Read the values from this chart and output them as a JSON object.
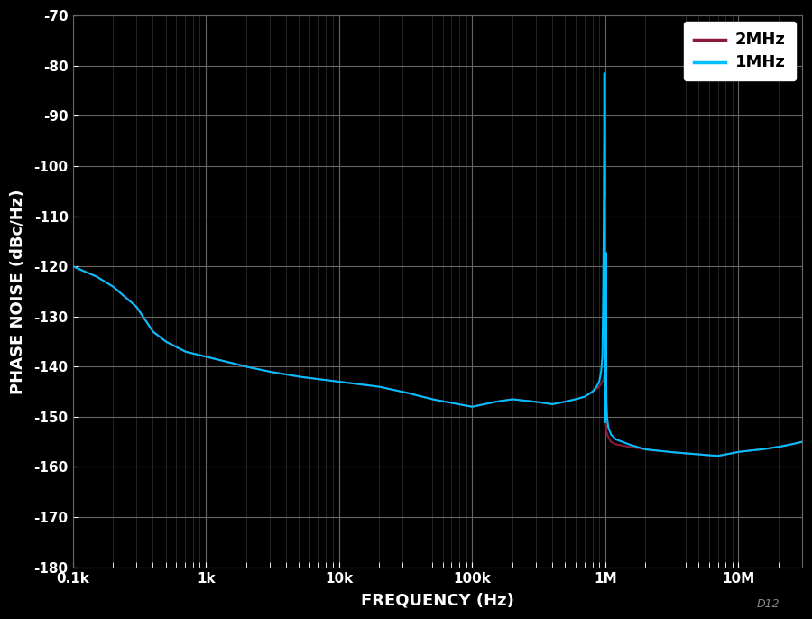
{
  "bg_color": "#000000",
  "grid_major_color": "#666666",
  "grid_minor_color": "#333333",
  "line_2MHz_color": "#8B1A3A",
  "line_1MHz_color": "#00BFFF",
  "xlabel": "FREQUENCY (Hz)",
  "ylabel": "PHASE NOISE (dBc/Hz)",
  "ylim": [
    -180,
    -70
  ],
  "yticks": [
    -180,
    -170,
    -160,
    -150,
    -140,
    -130,
    -120,
    -110,
    -100,
    -90,
    -80,
    -70
  ],
  "ytick_labels": [
    "-180",
    "-170",
    "-160",
    "-150",
    "-140",
    "-130",
    "-120",
    "-110",
    "-100",
    "-90",
    "-80",
    "-70"
  ],
  "xtick_freqs": [
    100,
    1000,
    10000,
    100000,
    1000000,
    10000000
  ],
  "xtick_labels": [
    "0.1k",
    "1k",
    "10k",
    "100k",
    "1M",
    "10M"
  ],
  "xmin": 100,
  "xmax": 30000000,
  "text_color": "#ffffff",
  "font_size_axis_label": 13,
  "font_size_tick": 11,
  "font_size_legend": 13,
  "watermark": "D12",
  "pts_2MHz": [
    [
      100,
      -120
    ],
    [
      150,
      -122
    ],
    [
      200,
      -124
    ],
    [
      300,
      -128
    ],
    [
      400,
      -133
    ],
    [
      500,
      -135
    ],
    [
      700,
      -137
    ],
    [
      1000,
      -138
    ],
    [
      2000,
      -140
    ],
    [
      3000,
      -141
    ],
    [
      5000,
      -142
    ],
    [
      7000,
      -142.5
    ],
    [
      10000,
      -143
    ],
    [
      20000,
      -144
    ],
    [
      30000,
      -145
    ],
    [
      50000,
      -146.5
    ],
    [
      80000,
      -147.5
    ],
    [
      100000,
      -148
    ],
    [
      150000,
      -147
    ],
    [
      200000,
      -146.5
    ],
    [
      300000,
      -147
    ],
    [
      400000,
      -147.5
    ],
    [
      500000,
      -147
    ],
    [
      600000,
      -146.5
    ],
    [
      700000,
      -146
    ],
    [
      800000,
      -145
    ],
    [
      900000,
      -144
    ],
    [
      950000,
      -143
    ],
    [
      970000,
      -142.5
    ],
    [
      990000,
      -141
    ],
    [
      998000,
      -138
    ],
    [
      999000,
      -130
    ],
    [
      999500,
      -115
    ],
    [
      999700,
      -100
    ],
    [
      999900,
      -83
    ],
    [
      1000000,
      -83
    ],
    [
      1000100,
      -83
    ],
    [
      1000300,
      -100
    ],
    [
      1000500,
      -115
    ],
    [
      1001000,
      -130
    ],
    [
      1002000,
      -138
    ],
    [
      1005000,
      -145
    ],
    [
      1010000,
      -151
    ],
    [
      1020000,
      -153
    ],
    [
      1050000,
      -154
    ],
    [
      1100000,
      -155
    ],
    [
      1200000,
      -155.5
    ],
    [
      1500000,
      -156
    ],
    [
      2000000,
      -156.5
    ],
    [
      3000000,
      -157
    ],
    [
      5000000,
      -157.5
    ],
    [
      7000000,
      -157.8
    ],
    [
      10000000,
      -157
    ],
    [
      15000000,
      -156.5
    ],
    [
      20000000,
      -156
    ],
    [
      25000000,
      -155.5
    ],
    [
      30000000,
      -155
    ]
  ],
  "pts_1MHz": [
    [
      100,
      -120
    ],
    [
      150,
      -122
    ],
    [
      200,
      -124
    ],
    [
      300,
      -128
    ],
    [
      400,
      -133
    ],
    [
      500,
      -135
    ],
    [
      700,
      -137
    ],
    [
      1000,
      -138
    ],
    [
      2000,
      -140
    ],
    [
      3000,
      -141
    ],
    [
      5000,
      -142
    ],
    [
      7000,
      -142.5
    ],
    [
      10000,
      -143
    ],
    [
      20000,
      -144
    ],
    [
      30000,
      -145
    ],
    [
      50000,
      -146.5
    ],
    [
      80000,
      -147.5
    ],
    [
      100000,
      -148
    ],
    [
      150000,
      -147
    ],
    [
      200000,
      -146.5
    ],
    [
      300000,
      -147
    ],
    [
      400000,
      -147.5
    ],
    [
      500000,
      -147
    ],
    [
      600000,
      -146.5
    ],
    [
      700000,
      -146
    ],
    [
      800000,
      -145
    ],
    [
      860000,
      -144
    ],
    [
      900000,
      -143
    ],
    [
      930000,
      -141
    ],
    [
      950000,
      -138
    ],
    [
      960000,
      -130
    ],
    [
      970000,
      -118
    ],
    [
      975000,
      -108
    ],
    [
      980000,
      -95
    ],
    [
      982000,
      -84
    ],
    [
      983000,
      -82
    ],
    [
      984000,
      -80
    ],
    [
      985000,
      -82
    ],
    [
      986000,
      -86
    ],
    [
      988000,
      -95
    ],
    [
      990000,
      -108
    ],
    [
      993000,
      -125
    ],
    [
      995000,
      -135
    ],
    [
      997000,
      -142
    ],
    [
      998500,
      -147
    ],
    [
      999000,
      -150
    ],
    [
      999500,
      -151
    ],
    [
      1000000,
      -151.5
    ],
    [
      1000500,
      -151
    ],
    [
      1001000,
      -150
    ],
    [
      1002000,
      -147
    ],
    [
      1003000,
      -144
    ],
    [
      1005000,
      -142
    ],
    [
      1007000,
      -141
    ],
    [
      1008000,
      -138
    ],
    [
      1009000,
      -130
    ],
    [
      1009500,
      -122
    ],
    [
      1010000,
      -116
    ],
    [
      1010500,
      -122
    ],
    [
      1011000,
      -128
    ],
    [
      1012000,
      -135
    ],
    [
      1015000,
      -141
    ],
    [
      1020000,
      -147
    ],
    [
      1030000,
      -150
    ],
    [
      1050000,
      -152
    ],
    [
      1100000,
      -153.5
    ],
    [
      1200000,
      -154.5
    ],
    [
      1500000,
      -155.5
    ],
    [
      2000000,
      -156.5
    ],
    [
      3000000,
      -157
    ],
    [
      5000000,
      -157.5
    ],
    [
      7000000,
      -157.8
    ],
    [
      10000000,
      -157
    ],
    [
      15000000,
      -156.5
    ],
    [
      20000000,
      -156
    ],
    [
      25000000,
      -155.5
    ],
    [
      30000000,
      -155
    ]
  ]
}
